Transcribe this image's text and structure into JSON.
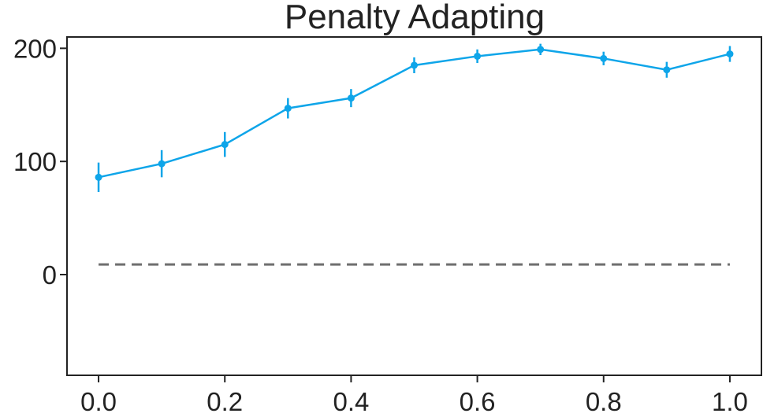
{
  "chart_data": {
    "type": "line",
    "title": "Penalty Adapting",
    "xlabel": "",
    "ylabel": "",
    "x": [
      0.0,
      0.1,
      0.2,
      0.3,
      0.4,
      0.5,
      0.6,
      0.7,
      0.8,
      0.9,
      1.0
    ],
    "series": [
      {
        "values": [
          86,
          98,
          115,
          147,
          156,
          185,
          193,
          199,
          191,
          181,
          195
        ],
        "error": [
          13,
          12,
          11,
          9,
          8,
          7,
          6,
          5,
          6,
          7,
          7
        ],
        "color": "#0ea5e9"
      }
    ],
    "reference_line": {
      "value": 9,
      "x_range": [
        0.0,
        1.0
      ],
      "style": "dashed",
      "color": "#6e6e6e"
    },
    "xlim": [
      -0.05,
      1.05
    ],
    "ylim": [
      -89,
      210
    ],
    "xticks": [
      "0.0",
      "0.2",
      "0.4",
      "0.6",
      "0.8",
      "1.0"
    ],
    "xtick_values": [
      0.0,
      0.2,
      0.4,
      0.6,
      0.8,
      1.0
    ],
    "yticks": [
      "0",
      "100",
      "200"
    ],
    "ytick_values": [
      0,
      100,
      200
    ],
    "grid": false,
    "legend": "none"
  }
}
